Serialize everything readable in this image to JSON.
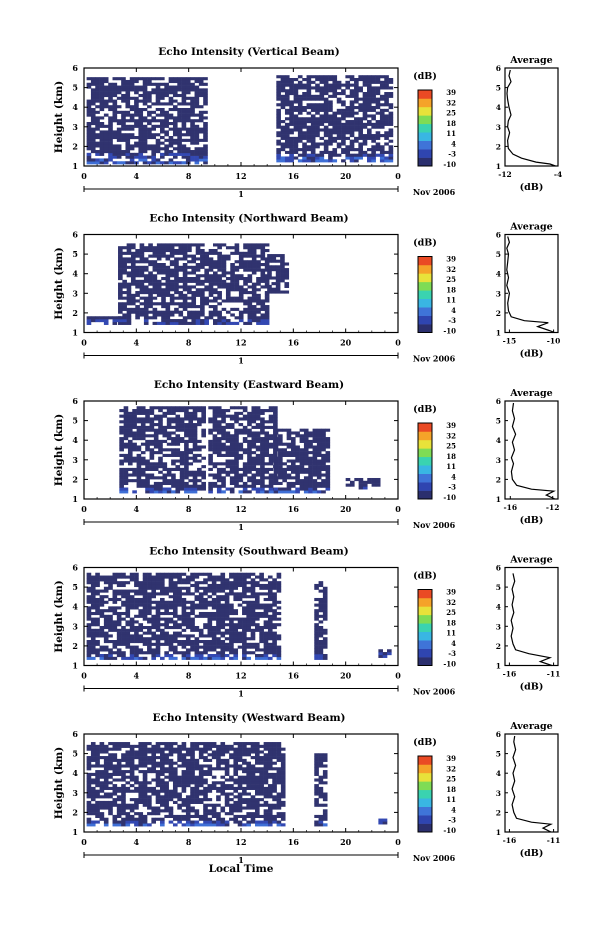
{
  "figure": {
    "colorbar_unit": "(dB)",
    "colorbar_ticks": [
      "39",
      "32",
      "25",
      "18",
      "11",
      "4",
      "-3",
      "-10"
    ],
    "colorbar_colors": [
      "#2b2f6e",
      "#2f45b0",
      "#3f74d8",
      "#39b6e3",
      "#3ad3b0",
      "#7fdc55",
      "#e8e23a",
      "#f5a329",
      "#ea4a24"
    ],
    "date_label": "Nov 2006",
    "day_label": "1",
    "x_label": "Local Time",
    "average_title": "Average",
    "average_xlabel": "(dB)"
  },
  "chart_data": [
    {
      "type": "heatmap",
      "title": "Echo Intensity (Vertical Beam)",
      "ylabel": "Height (km)",
      "x_ticks": [
        "0",
        "4",
        "8",
        "12",
        "16",
        "20",
        "0"
      ],
      "y_ticks": [
        "1",
        "2",
        "3",
        "4",
        "5",
        "6"
      ],
      "xlim": [
        0,
        24
      ],
      "ylim": [
        1,
        6
      ],
      "data_blocks": [
        {
          "x": [
            0.2,
            9.3
          ],
          "y": [
            1.1,
            5.5
          ]
        },
        {
          "x": [
            14.7,
            23.3
          ],
          "y": [
            1.2,
            5.5
          ]
        }
      ],
      "seed": 11,
      "average": {
        "xticks": [
          "-12",
          "-4"
        ],
        "xlim": [
          -12,
          -4
        ],
        "profile": [
          [
            1.0,
            -4.4
          ],
          [
            1.1,
            -5.2
          ],
          [
            1.2,
            -7.3
          ],
          [
            1.4,
            -9.5
          ],
          [
            1.6,
            -10.8
          ],
          [
            1.9,
            -11.5
          ],
          [
            2.3,
            -11.6
          ],
          [
            2.7,
            -11.3
          ],
          [
            3.0,
            -11.6
          ],
          [
            3.3,
            -11.5
          ],
          [
            3.6,
            -11.1
          ],
          [
            4.0,
            -11.4
          ],
          [
            4.4,
            -11.6
          ],
          [
            4.7,
            -11.7
          ],
          [
            5.0,
            -11.6
          ],
          [
            5.3,
            -11.1
          ],
          [
            5.6,
            -11.4
          ],
          [
            5.9,
            -11.2
          ]
        ]
      }
    },
    {
      "type": "heatmap",
      "title": "Echo Intensity (Northward Beam)",
      "ylabel": "Height (km)",
      "x_ticks": [
        "0",
        "4",
        "8",
        "12",
        "16",
        "20",
        "0"
      ],
      "y_ticks": [
        "1",
        "2",
        "3",
        "4",
        "5",
        "6"
      ],
      "xlim": [
        0,
        24
      ],
      "ylim": [
        1,
        6
      ],
      "data_blocks": [
        {
          "x": [
            0.2,
            2.6
          ],
          "y": [
            1.4,
            1.8
          ]
        },
        {
          "x": [
            2.6,
            14.0
          ],
          "y": [
            1.4,
            5.5
          ]
        },
        {
          "x": [
            14.0,
            15.5
          ],
          "y": [
            3.0,
            5.0
          ]
        }
      ],
      "seed": 23,
      "average": {
        "xticks": [
          "-15",
          "-10"
        ],
        "xlim": [
          -15.5,
          -9.5
        ],
        "profile": [
          [
            1.0,
            -9.9
          ],
          [
            1.1,
            -10.5
          ],
          [
            1.3,
            -11.8
          ],
          [
            1.5,
            -10.6
          ],
          [
            1.6,
            -13.3
          ],
          [
            1.8,
            -14.8
          ],
          [
            2.1,
            -15.1
          ],
          [
            2.5,
            -15.2
          ],
          [
            3.0,
            -15.0
          ],
          [
            3.4,
            -15.3
          ],
          [
            3.8,
            -15.1
          ],
          [
            4.2,
            -15.3
          ],
          [
            4.6,
            -15.2
          ],
          [
            5.0,
            -15.1
          ],
          [
            5.3,
            -15.3
          ],
          [
            5.6,
            -15.0
          ],
          [
            5.9,
            -15.2
          ]
        ]
      }
    },
    {
      "type": "heatmap",
      "title": "Echo Intensity (Eastward Beam)",
      "ylabel": "Height (km)",
      "x_ticks": [
        "0",
        "4",
        "8",
        "12",
        "16",
        "20",
        "0"
      ],
      "y_ticks": [
        "1",
        "2",
        "3",
        "4",
        "5",
        "6"
      ],
      "xlim": [
        0,
        24
      ],
      "ylim": [
        1,
        6
      ],
      "data_blocks": [
        {
          "x": [
            2.7,
            9.3
          ],
          "y": [
            1.3,
            5.6
          ]
        },
        {
          "x": [
            9.5,
            14.5
          ],
          "y": [
            1.3,
            5.6
          ]
        },
        {
          "x": [
            14.5,
            18.5
          ],
          "y": [
            1.3,
            4.5
          ]
        },
        {
          "x": [
            20.0,
            22.5
          ],
          "y": [
            1.5,
            2.0
          ]
        }
      ],
      "seed": 37,
      "average": {
        "xticks": [
          "-16",
          "-12"
        ],
        "xlim": [
          -16.5,
          -11.5
        ],
        "profile": [
          [
            1.0,
            -11.8
          ],
          [
            1.2,
            -12.6
          ],
          [
            1.4,
            -11.9
          ],
          [
            1.5,
            -14.0
          ],
          [
            1.7,
            -15.4
          ],
          [
            2.0,
            -15.8
          ],
          [
            2.4,
            -15.9
          ],
          [
            2.8,
            -15.7
          ],
          [
            3.1,
            -15.9
          ],
          [
            3.5,
            -15.6
          ],
          [
            3.9,
            -15.8
          ],
          [
            4.3,
            -15.5
          ],
          [
            4.7,
            -15.8
          ],
          [
            5.1,
            -15.6
          ],
          [
            5.5,
            -15.8
          ],
          [
            5.9,
            -15.7
          ]
        ]
      }
    },
    {
      "type": "heatmap",
      "title": "Echo Intensity (Southward Beam)",
      "ylabel": "Height (km)",
      "x_ticks": [
        "0",
        "4",
        "8",
        "12",
        "16",
        "20",
        "0"
      ],
      "y_ticks": [
        "1",
        "2",
        "3",
        "4",
        "5",
        "6"
      ],
      "xlim": [
        0,
        24
      ],
      "ylim": [
        1,
        6
      ],
      "data_blocks": [
        {
          "x": [
            0.2,
            14.8
          ],
          "y": [
            1.3,
            5.7
          ]
        },
        {
          "x": [
            17.6,
            18.3
          ],
          "y": [
            1.3,
            5.3
          ]
        },
        {
          "x": [
            22.5,
            23.3
          ],
          "y": [
            1.4,
            1.7
          ]
        }
      ],
      "seed": 53,
      "average": {
        "xticks": [
          "-16",
          "-11"
        ],
        "xlim": [
          -16.5,
          -10.5
        ],
        "profile": [
          [
            1.0,
            -11.2
          ],
          [
            1.2,
            -12.5
          ],
          [
            1.4,
            -11.4
          ],
          [
            1.6,
            -13.8
          ],
          [
            1.8,
            -15.3
          ],
          [
            2.1,
            -15.6
          ],
          [
            2.5,
            -15.8
          ],
          [
            2.9,
            -15.6
          ],
          [
            3.3,
            -15.8
          ],
          [
            3.7,
            -15.5
          ],
          [
            4.1,
            -15.7
          ],
          [
            4.5,
            -15.5
          ],
          [
            4.9,
            -15.7
          ],
          [
            5.3,
            -15.4
          ],
          [
            5.7,
            -15.6
          ]
        ]
      }
    },
    {
      "type": "heatmap",
      "title": "Echo Intensity (Westward Beam)",
      "ylabel": "Height (km)",
      "x_ticks": [
        "0",
        "4",
        "8",
        "12",
        "16",
        "20",
        "0"
      ],
      "y_ticks": [
        "1",
        "2",
        "3",
        "4",
        "5",
        "6"
      ],
      "xlim": [
        0,
        24
      ],
      "ylim": [
        1,
        6
      ],
      "data_blocks": [
        {
          "x": [
            0.2,
            15.2
          ],
          "y": [
            1.3,
            5.5
          ]
        },
        {
          "x": [
            17.6,
            18.3
          ],
          "y": [
            1.3,
            5.0
          ]
        },
        {
          "x": [
            22.5,
            23.0
          ],
          "y": [
            1.4,
            1.6
          ]
        }
      ],
      "seed": 71,
      "average": {
        "xticks": [
          "-16",
          "-11"
        ],
        "xlim": [
          -16.5,
          -10.5
        ],
        "profile": [
          [
            1.0,
            -11.3
          ],
          [
            1.2,
            -12.2
          ],
          [
            1.4,
            -11.3
          ],
          [
            1.5,
            -13.5
          ],
          [
            1.7,
            -15.2
          ],
          [
            2.0,
            -15.5
          ],
          [
            2.4,
            -15.7
          ],
          [
            2.8,
            -15.4
          ],
          [
            3.2,
            -15.7
          ],
          [
            3.6,
            -15.4
          ],
          [
            4.0,
            -15.6
          ],
          [
            4.4,
            -15.3
          ],
          [
            4.8,
            -15.6
          ],
          [
            5.2,
            -15.3
          ],
          [
            5.6,
            -15.5
          ],
          [
            5.9,
            -15.4
          ]
        ]
      }
    }
  ]
}
